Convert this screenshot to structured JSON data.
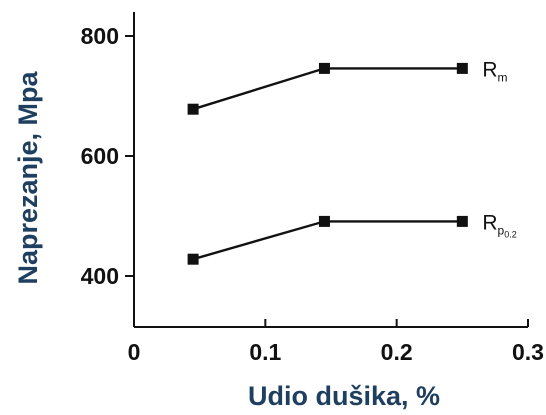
{
  "chart_data": {
    "type": "line",
    "xlabel": "Udio dušika, %",
    "ylabel": "Naprezanje, Mpa",
    "xlim": [
      0,
      0.3
    ],
    "ylim": [
      315,
      840
    ],
    "x_ticks": [
      {
        "value": 0,
        "label": "0"
      },
      {
        "value": 0.1,
        "label": "0.1"
      },
      {
        "value": 0.2,
        "label": "0.2"
      },
      {
        "value": 0.3,
        "label": "0.3"
      }
    ],
    "y_ticks": [
      {
        "value": 400,
        "label": "400"
      },
      {
        "value": 600,
        "label": "600"
      },
      {
        "value": 800,
        "label": "800"
      }
    ],
    "grid": false,
    "series": [
      {
        "name": "Rm",
        "label_main": "R",
        "label_sub": "m",
        "x": [
          0.045,
          0.145,
          0.25
        ],
        "y": [
          678,
          746,
          746
        ]
      },
      {
        "name": "Rp0,2",
        "label_main": "R",
        "label_sub": "p",
        "label_subsub": "0.2",
        "x": [
          0.045,
          0.145,
          0.25
        ],
        "y": [
          428,
          491,
          491
        ]
      }
    ],
    "colors": {
      "axis": "#111111",
      "line": "#111111",
      "marker": "#111111",
      "axis_title": "#1f3f60"
    }
  }
}
